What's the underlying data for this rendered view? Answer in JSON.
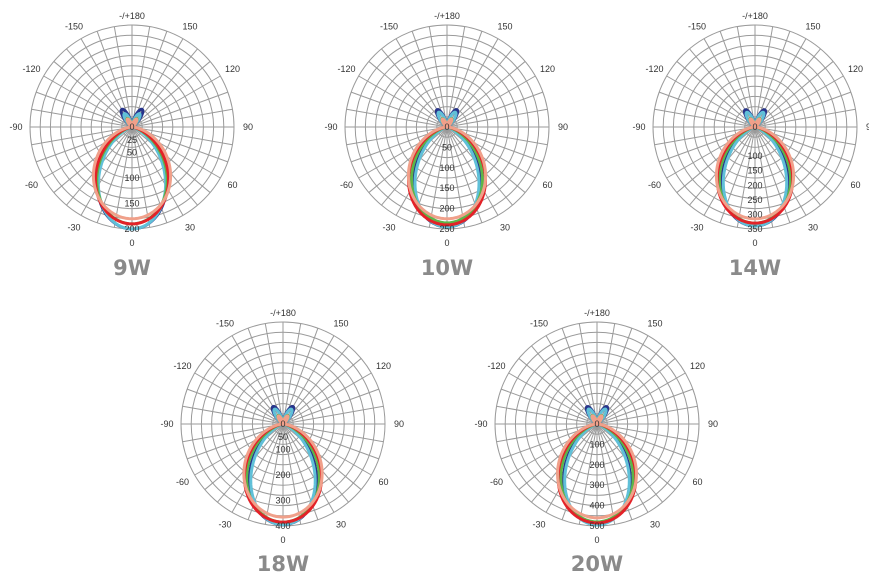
{
  "chart_data": [
    {
      "type": "polar",
      "title": "9W",
      "angle_ticks": [
        -150,
        -120,
        -90,
        -60,
        -30,
        0,
        30,
        60,
        90,
        120,
        150
      ],
      "angle_top_label": "-/+180",
      "radial_ticks": [
        25,
        50,
        100,
        150,
        200
      ],
      "rmax": 200,
      "series": [
        {
          "color": "#27348b",
          "peak": 200,
          "width": 2.7,
          "lobe": 0.2
        },
        {
          "color": "#60c0d8",
          "peak": 200,
          "width": 2.9,
          "lobe": 0.15
        },
        {
          "color": "#5db548",
          "peak": 190,
          "width": 2.3,
          "lobe": 0.1
        },
        {
          "color": "#e32228",
          "peak": 190,
          "width": 2.1,
          "lobe": 0.08
        },
        {
          "color": "#f0a08a",
          "peak": 180,
          "width": 1.6,
          "lobe": 0.1
        }
      ]
    },
    {
      "type": "polar",
      "title": "10W",
      "angle_ticks": [
        -150,
        -120,
        -90,
        -60,
        -30,
        0,
        30,
        60,
        90,
        120,
        150
      ],
      "angle_top_label": "-/+180",
      "radial_ticks": [
        50,
        100,
        150,
        200,
        250
      ],
      "rmax": 250,
      "series": [
        {
          "color": "#27348b",
          "peak": 245,
          "width": 2.8,
          "lobe": 0.2
        },
        {
          "color": "#60c0d8",
          "peak": 245,
          "width": 3.1,
          "lobe": 0.17
        },
        {
          "color": "#5db548",
          "peak": 235,
          "width": 2.2,
          "lobe": 0.1
        },
        {
          "color": "#e32228",
          "peak": 240,
          "width": 1.9,
          "lobe": 0.08
        },
        {
          "color": "#f0a08a",
          "peak": 225,
          "width": 1.6,
          "lobe": 0.1
        }
      ]
    },
    {
      "type": "polar",
      "title": "14W",
      "angle_ticks": [
        -150,
        -120,
        -90,
        -60,
        -30,
        0,
        30,
        60,
        90,
        120,
        150
      ],
      "angle_top_label": "-/+180",
      "radial_ticks": [
        100,
        150,
        200,
        250,
        300,
        350
      ],
      "rmax": 350,
      "series": [
        {
          "color": "#27348b",
          "peak": 340,
          "width": 2.8,
          "lobe": 0.2
        },
        {
          "color": "#60c0d8",
          "peak": 340,
          "width": 3.1,
          "lobe": 0.17
        },
        {
          "color": "#5db548",
          "peak": 330,
          "width": 2.2,
          "lobe": 0.1
        },
        {
          "color": "#e32228",
          "peak": 330,
          "width": 1.9,
          "lobe": 0.08
        },
        {
          "color": "#f0a08a",
          "peak": 315,
          "width": 1.6,
          "lobe": 0.1
        }
      ]
    },
    {
      "type": "polar",
      "title": "18W",
      "angle_ticks": [
        -150,
        -120,
        -90,
        -60,
        -30,
        0,
        30,
        60,
        90,
        120,
        150
      ],
      "angle_top_label": "-/+180",
      "radial_ticks": [
        50,
        100,
        200,
        300,
        400
      ],
      "rmax": 400,
      "series": [
        {
          "color": "#27348b",
          "peak": 395,
          "width": 2.8,
          "lobe": 0.2
        },
        {
          "color": "#60c0d8",
          "peak": 395,
          "width": 3.1,
          "lobe": 0.17
        },
        {
          "color": "#5db548",
          "peak": 385,
          "width": 2.2,
          "lobe": 0.1
        },
        {
          "color": "#e32228",
          "peak": 385,
          "width": 1.9,
          "lobe": 0.08
        },
        {
          "color": "#f0a08a",
          "peak": 365,
          "width": 1.6,
          "lobe": 0.1
        }
      ]
    },
    {
      "type": "polar",
      "title": "20W",
      "angle_ticks": [
        -150,
        -120,
        -90,
        -60,
        -30,
        0,
        30,
        60,
        90,
        120,
        150
      ],
      "angle_top_label": "-/+180",
      "radial_ticks": [
        100,
        200,
        300,
        400,
        500
      ],
      "rmax": 500,
      "series": [
        {
          "color": "#27348b",
          "peak": 490,
          "width": 2.8,
          "lobe": 0.2
        },
        {
          "color": "#60c0d8",
          "peak": 495,
          "width": 3.1,
          "lobe": 0.17
        },
        {
          "color": "#5db548",
          "peak": 480,
          "width": 2.2,
          "lobe": 0.1
        },
        {
          "color": "#e32228",
          "peak": 485,
          "width": 1.9,
          "lobe": 0.08
        },
        {
          "color": "#f0a08a",
          "peak": 460,
          "width": 1.6,
          "lobe": 0.1
        }
      ]
    }
  ]
}
